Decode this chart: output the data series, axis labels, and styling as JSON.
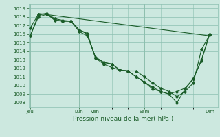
{
  "bg_color": "#cce8df",
  "grid_color": "#8bbfb0",
  "line_color": "#1a5c28",
  "ylabel_text": "Pression niveau de la mer( hPa )",
  "xtick_labels": [
    "Jeu",
    "",
    "",
    "Lun",
    "Ven",
    "",
    "",
    "Sam",
    "",
    "",
    "",
    "Dim"
  ],
  "xtick_positions": [
    0,
    1,
    2,
    3,
    4,
    5,
    6,
    7,
    8,
    9,
    10,
    11
  ],
  "xlim": [
    -0.1,
    11.5
  ],
  "ylim": [
    1007.5,
    1019.5
  ],
  "yticks": [
    1008,
    1009,
    1010,
    1011,
    1012,
    1013,
    1014,
    1015,
    1016,
    1017,
    1018,
    1019
  ],
  "day_lines_x": [
    0,
    3,
    4,
    7,
    11
  ],
  "line1_x": [
    0,
    0.5,
    1,
    1.5,
    2,
    2.5,
    3,
    3.5,
    4,
    4.5,
    5,
    5.5,
    6,
    6.5,
    7,
    7.5,
    8,
    8.5,
    9,
    9.5,
    10,
    10.5,
    11
  ],
  "line1_y": [
    1015.8,
    1018.0,
    1018.3,
    1017.7,
    1017.5,
    1017.5,
    1016.5,
    1016.0,
    1013.3,
    1012.7,
    1012.5,
    1011.8,
    1011.7,
    1011.7,
    1011.0,
    1010.3,
    1009.7,
    1009.3,
    1008.7,
    1009.3,
    1010.3,
    1014.2,
    1015.9
  ],
  "line2_x": [
    0,
    0.5,
    1,
    1.5,
    2,
    2.5,
    3,
    3.5,
    4,
    4.5,
    5,
    5.5,
    6,
    6.5,
    7,
    7.5,
    8,
    8.5,
    9,
    9.5,
    10,
    10.5,
    11
  ],
  "line2_y": [
    1015.8,
    1018.2,
    1018.4,
    1017.6,
    1017.5,
    1017.5,
    1016.3,
    1015.8,
    1013.3,
    1012.7,
    1012.5,
    1011.8,
    1011.7,
    1011.0,
    1010.4,
    1009.8,
    1009.3,
    1009.0,
    1008.0,
    1009.6,
    1010.8,
    1013.0,
    1016.0
  ],
  "line3_x": [
    0,
    0.5,
    1,
    1.5,
    2,
    2.5,
    3,
    3.5,
    4,
    4.5,
    5,
    5.5,
    6,
    6.5,
    7,
    7.5,
    8,
    8.5,
    9,
    9.5,
    10,
    10.5,
    11
  ],
  "line3_y": [
    1016.7,
    1018.3,
    1018.4,
    1017.8,
    1017.6,
    1017.5,
    1016.5,
    1016.1,
    1013.2,
    1012.5,
    1012.1,
    1011.8,
    1011.7,
    1011.0,
    1010.4,
    1009.6,
    1009.3,
    1009.0,
    1009.3,
    1009.7,
    1010.8,
    1012.9,
    1016.0
  ],
  "flat_line_x": [
    0.5,
    11
  ],
  "flat_line_y": [
    1018.4,
    1015.8
  ]
}
